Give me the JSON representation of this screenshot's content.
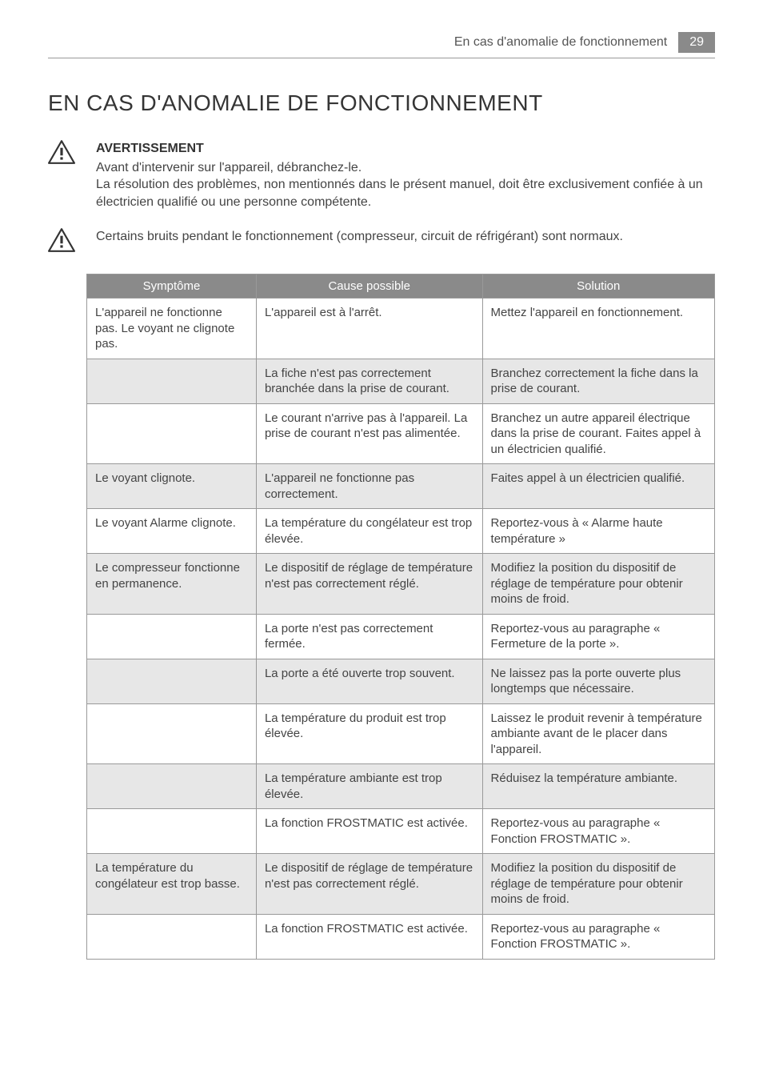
{
  "header": {
    "section_title": "En cas d'anomalie de fonctionnement",
    "page_number": "29"
  },
  "title": "EN CAS D'ANOMALIE DE FONCTIONNEMENT",
  "warning1": {
    "heading": "AVERTISSEMENT",
    "line1": "Avant d'intervenir sur l'appareil, débranchez-le.",
    "line2": "La résolution des problèmes, non mentionnés dans le présent manuel, doit être exclusivement confiée à un électricien qualifié ou une personne compétente."
  },
  "warning2": {
    "text": "Certains bruits pendant le fonctionnement (compresseur, circuit de réfrigérant) sont normaux."
  },
  "table": {
    "columns": [
      "Symptôme",
      "Cause possible",
      "Solution"
    ],
    "col_widths": [
      "27%",
      "36%",
      "37%"
    ],
    "header_bg": "#8a8a8a",
    "header_fg": "#ffffff",
    "border_color": "#999999",
    "shaded_bg": "#e7e7e7",
    "font_size": 15,
    "rows": [
      {
        "shaded": false,
        "cells": [
          "L'appareil ne fonctionne pas. Le voyant ne clignote pas.",
          "L'appareil est à l'arrêt.",
          "Mettez l'appareil en fonctionnement."
        ]
      },
      {
        "shaded": true,
        "cells": [
          "",
          "La fiche n'est pas correctement branchée dans la prise de courant.",
          "Branchez correctement la fiche dans la prise de courant."
        ]
      },
      {
        "shaded": false,
        "cells": [
          "",
          "Le courant n'arrive pas à l'appareil. La prise de courant n'est pas alimentée.",
          "Branchez un autre appareil électrique dans la prise de courant. Faites appel à un électricien qualifié."
        ]
      },
      {
        "shaded": true,
        "cells": [
          "Le voyant clignote.",
          "L'appareil ne fonctionne pas correctement.",
          "Faites appel à un électricien qualifié."
        ]
      },
      {
        "shaded": false,
        "cells": [
          "Le voyant Alarme clignote.",
          "La température du congélateur est trop élevée.",
          "Reportez-vous à « Alarme haute température »"
        ]
      },
      {
        "shaded": true,
        "cells": [
          "Le compresseur fonctionne en permanence.",
          "Le dispositif de réglage de température n'est pas correctement réglé.",
          "Modifiez la position du dispositif de réglage de température pour obtenir moins de froid."
        ]
      },
      {
        "shaded": false,
        "cells": [
          "",
          "La porte n'est pas correctement fermée.",
          "Reportez-vous au paragraphe « Fermeture de la porte »."
        ]
      },
      {
        "shaded": true,
        "cells": [
          "",
          "La porte a été ouverte trop souvent.",
          "Ne laissez pas la porte ouverte plus longtemps que nécessaire."
        ]
      },
      {
        "shaded": false,
        "cells": [
          "",
          "La température du produit est trop élevée.",
          "Laissez le produit revenir à température ambiante avant de le placer dans l'appareil."
        ]
      },
      {
        "shaded": true,
        "cells": [
          "",
          "La température ambiante est trop élevée.",
          "Réduisez la température ambiante."
        ]
      },
      {
        "shaded": false,
        "cells": [
          "",
          "La fonction FROSTMATIC est activée.",
          "Reportez-vous au paragraphe « Fonction FROSTMATIC »."
        ]
      },
      {
        "shaded": true,
        "cells": [
          "La température du congélateur est trop basse.",
          "Le dispositif de réglage de température n'est pas correctement réglé.",
          "Modifiez la position du dispositif de réglage de température pour obtenir moins de froid."
        ]
      },
      {
        "shaded": false,
        "cells": [
          "",
          "La fonction FROSTMATIC est activée.",
          "Reportez-vous au paragraphe « Fonction FROSTMATIC »."
        ]
      }
    ]
  },
  "colors": {
    "page_bg": "#ffffff",
    "text": "#3a3a3a",
    "header_box_bg": "#8a8a8a",
    "header_box_fg": "#ffffff"
  },
  "typography": {
    "title_fontsize": 28,
    "body_fontsize": 16,
    "table_fontsize": 15,
    "font_family": "Arial"
  }
}
